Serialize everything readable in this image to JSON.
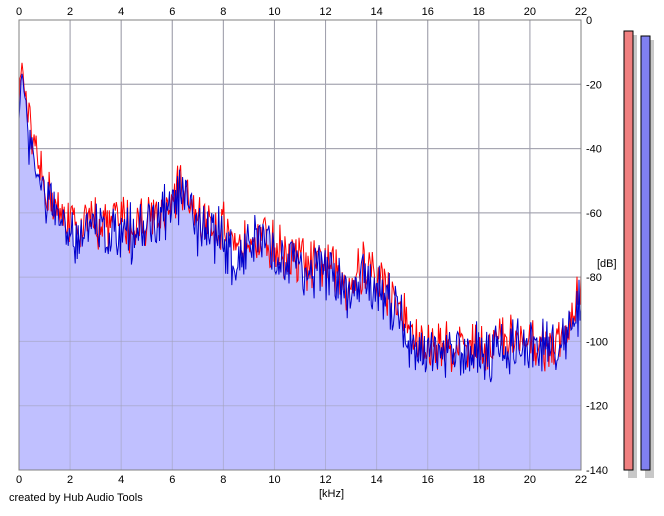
{
  "footer_text": "created by Hub Audio Tools",
  "chart_data": {
    "type": "area",
    "title": "",
    "xlabel": "[kHz]",
    "ylabel": "[dB]",
    "xlim": [
      0,
      22
    ],
    "ylim": [
      -140,
      0
    ],
    "x_ticks": [
      "0",
      "2",
      "4",
      "6",
      "8",
      "10",
      "12",
      "14",
      "16",
      "18",
      "20",
      "22"
    ],
    "y_ticks": [
      "0",
      "-20",
      "-40",
      "-60",
      "-80",
      "-100",
      "-120",
      "-140"
    ],
    "grid": true,
    "colors": {
      "left": "#ff0000",
      "right": "#0000cc",
      "fill": "#c0c0ff",
      "meter_left": "#f08080",
      "meter_right": "#8080f0"
    },
    "series": [
      {
        "channel": "left",
        "x": [
          0,
          0.1,
          0.2,
          0.4,
          0.6,
          0.8,
          1.0,
          1.2,
          1.5,
          2.0,
          2.5,
          3.0,
          3.5,
          4.0,
          4.5,
          5.0,
          5.5,
          6.0,
          6.3,
          6.6,
          7.0,
          7.5,
          8.0,
          8.5,
          9.0,
          9.5,
          10.0,
          10.5,
          11.0,
          11.5,
          12.0,
          12.5,
          13.0,
          13.5,
          14.0,
          14.5,
          15.0,
          15.5,
          16.0,
          16.5,
          17.0,
          17.5,
          18.0,
          18.5,
          19.0,
          19.5,
          20.0,
          20.5,
          21.0,
          21.5,
          22.0
        ],
        "y": [
          -25,
          -12,
          -20,
          -30,
          -40,
          -45,
          -48,
          -52,
          -58,
          -60,
          -62,
          -60,
          -61,
          -59,
          -62,
          -58,
          -59,
          -52,
          -50,
          -54,
          -58,
          -60,
          -62,
          -72,
          -62,
          -64,
          -68,
          -70,
          -72,
          -74,
          -72,
          -78,
          -80,
          -74,
          -78,
          -82,
          -88,
          -96,
          -100,
          -99,
          -98,
          -98,
          -98,
          -98,
          -97,
          -98,
          -99,
          -97,
          -98,
          -96,
          -80
        ]
      },
      {
        "channel": "right",
        "x": [
          0,
          0.1,
          0.2,
          0.4,
          0.6,
          0.8,
          1.0,
          1.2,
          1.5,
          2.0,
          2.5,
          3.0,
          3.5,
          4.0,
          4.5,
          5.0,
          5.5,
          6.0,
          6.3,
          6.6,
          7.0,
          7.5,
          8.0,
          8.5,
          9.0,
          9.5,
          10.0,
          10.5,
          11.0,
          11.5,
          12.0,
          12.5,
          13.0,
          13.5,
          14.0,
          14.5,
          15.0,
          15.5,
          16.0,
          16.5,
          17.0,
          17.5,
          18.0,
          18.5,
          19.0,
          19.5,
          20.0,
          20.5,
          21.0,
          21.5,
          22.0
        ],
        "y": [
          -28,
          -14,
          -22,
          -32,
          -42,
          -47,
          -50,
          -54,
          -60,
          -62,
          -63,
          -62,
          -62,
          -61,
          -63,
          -60,
          -60,
          -54,
          -52,
          -56,
          -60,
          -62,
          -64,
          -74,
          -64,
          -66,
          -70,
          -71,
          -73,
          -76,
          -74,
          -80,
          -82,
          -76,
          -80,
          -84,
          -90,
          -98,
          -101,
          -100,
          -99,
          -99,
          -99,
          -99,
          -98,
          -99,
          -100,
          -98,
          -99,
          -97,
          -82
        ]
      }
    ]
  }
}
